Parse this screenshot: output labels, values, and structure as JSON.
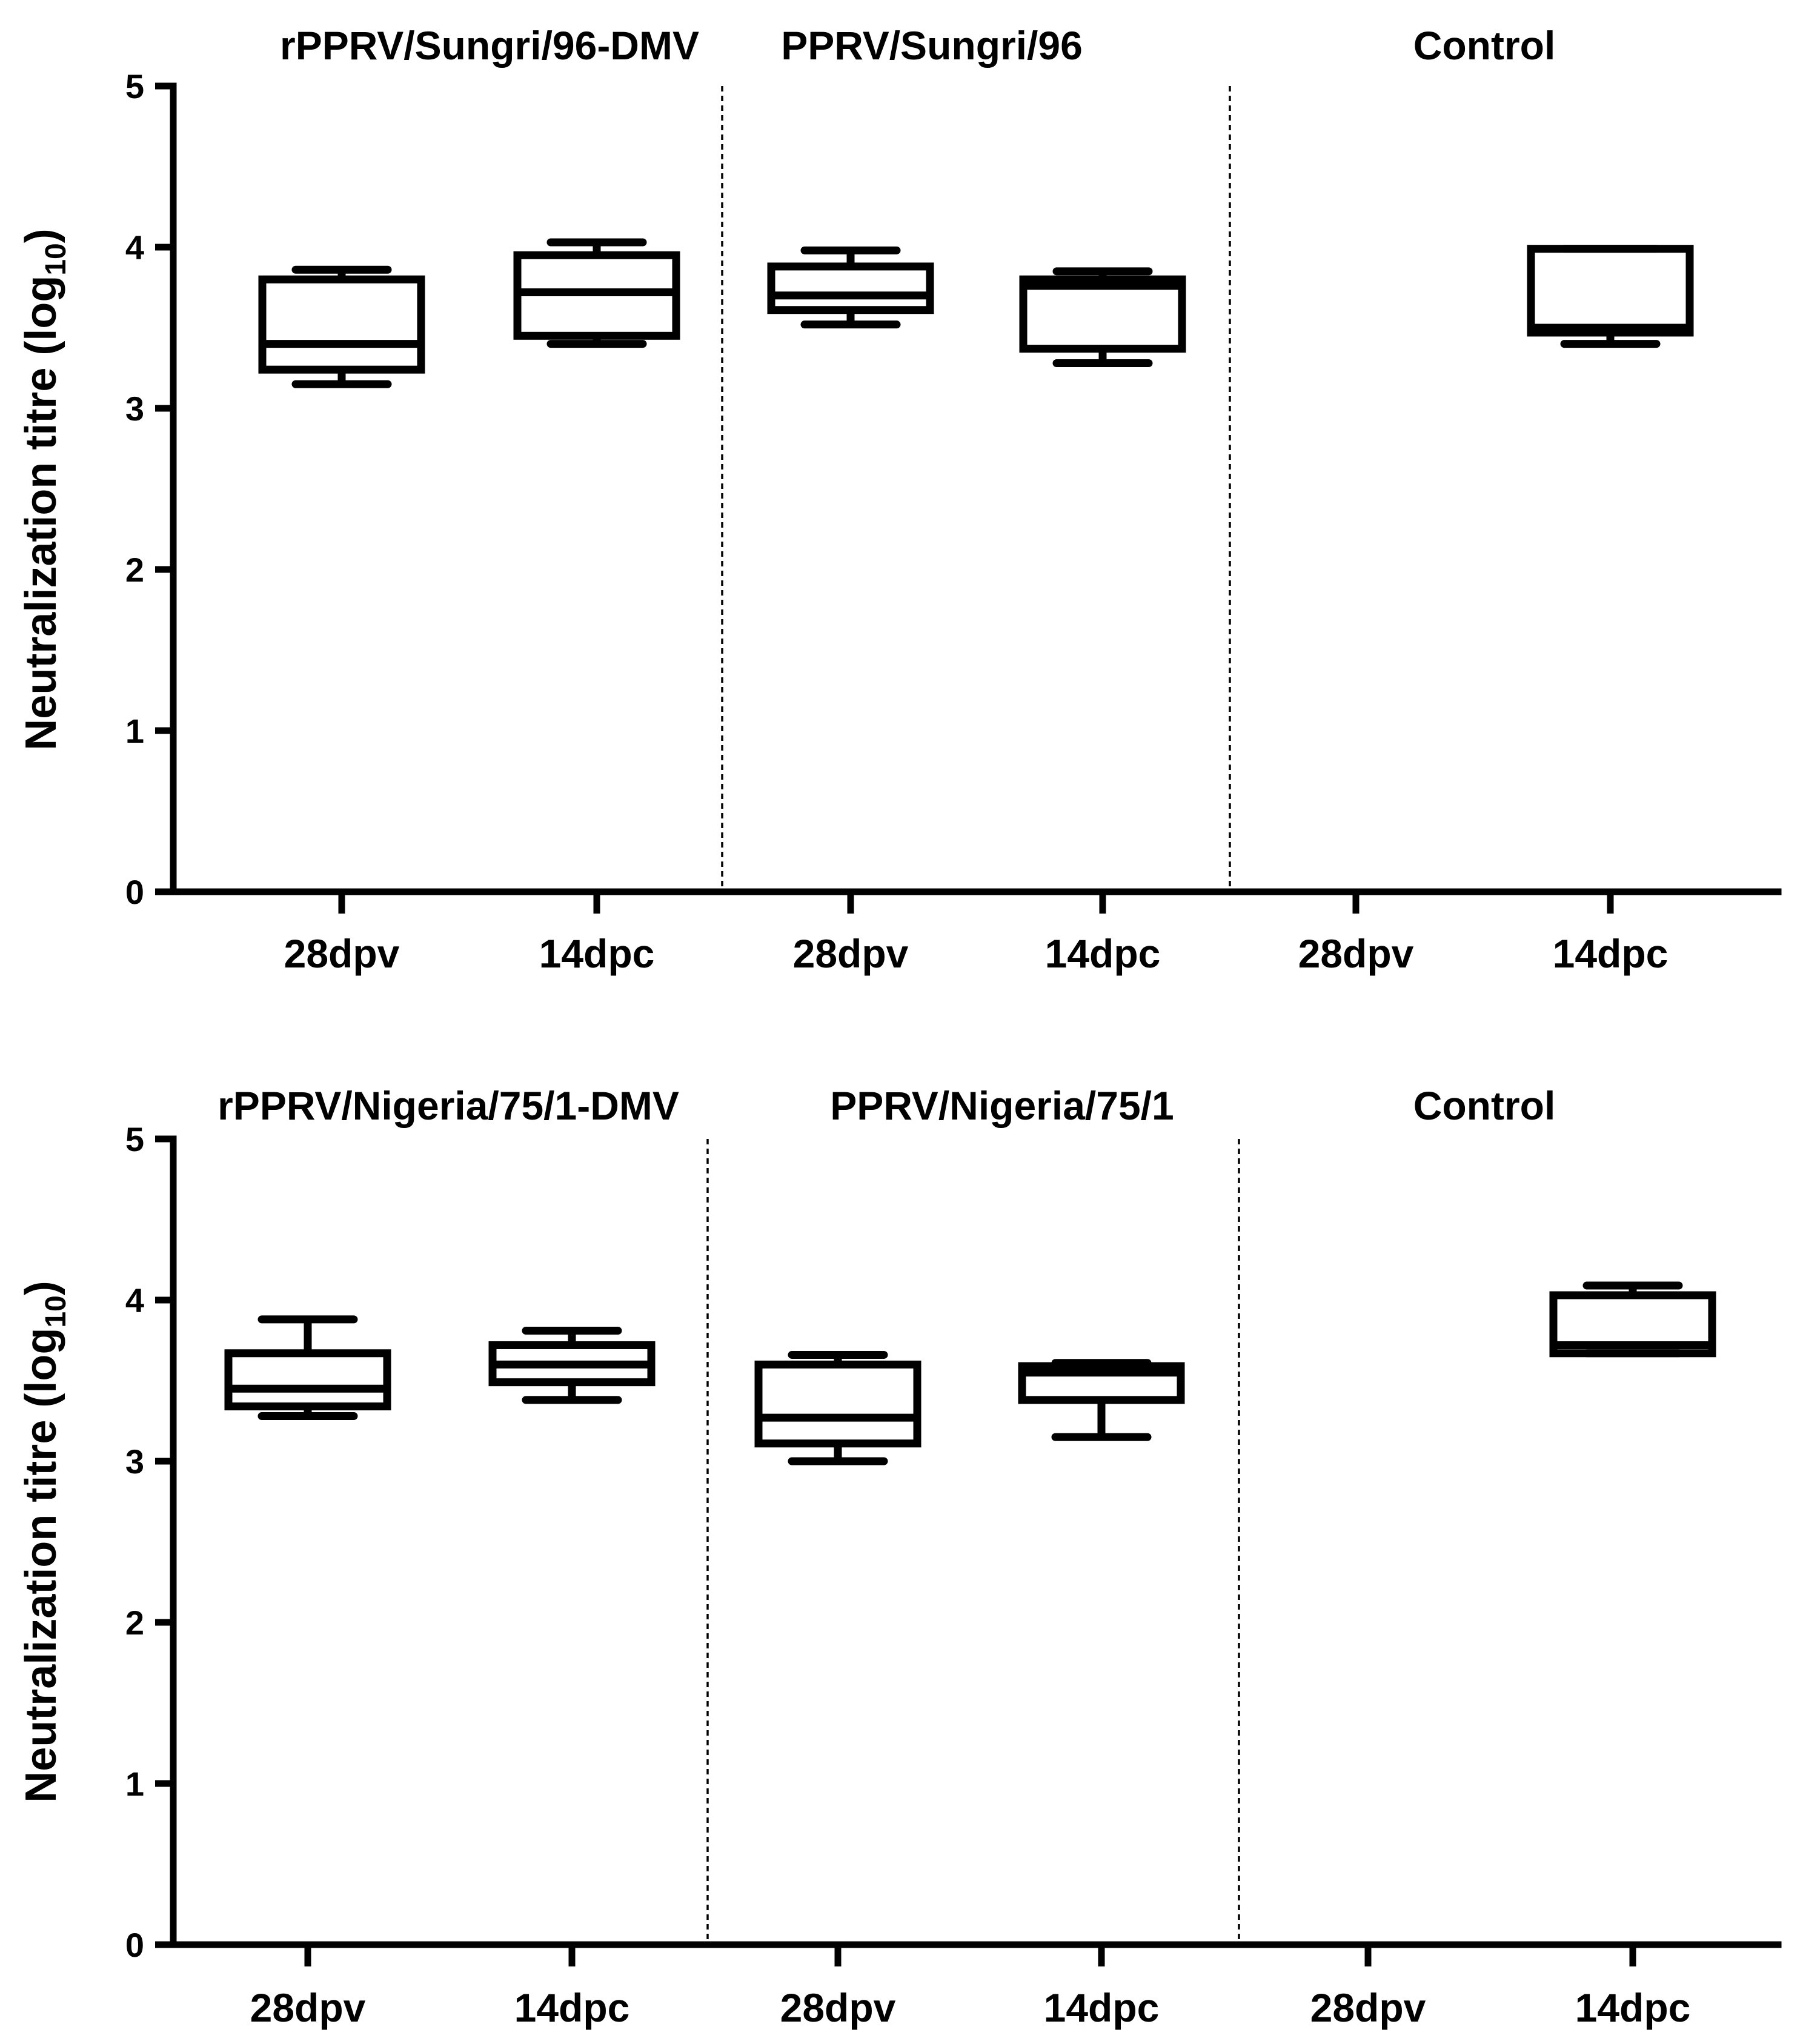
{
  "chart_data": [
    {
      "type": "box",
      "ylabel": "Neutralization titre (log10)",
      "ylabel_parts": {
        "main": "Neutralization titre (log",
        "sub": "10",
        "close": ")"
      },
      "ylim": [
        0,
        5
      ],
      "yticks": [
        "0",
        "1",
        "2",
        "3",
        "4",
        "5"
      ],
      "groups": [
        "rPPRV/Sungri/96-DMV",
        "PPRV/Sungri/96",
        "Control"
      ],
      "categories": [
        "28dpv",
        "14dpc",
        "28dpv",
        "14dpc",
        "28dpv",
        "14dpc"
      ],
      "boxes": [
        {
          "group": "rPPRV/Sungri/96-DMV",
          "category": "28dpv",
          "min": 3.15,
          "q1": 3.24,
          "median": 3.4,
          "q3": 3.8,
          "max": 3.86
        },
        {
          "group": "rPPRV/Sungri/96-DMV",
          "category": "14dpc",
          "min": 3.4,
          "q1": 3.45,
          "median": 3.72,
          "q3": 3.95,
          "max": 4.03
        },
        {
          "group": "PPRV/Sungri/96",
          "category": "28dpv",
          "min": 3.52,
          "q1": 3.61,
          "median": 3.7,
          "q3": 3.88,
          "max": 3.98
        },
        {
          "group": "PPRV/Sungri/96",
          "category": "14dpc",
          "min": 3.28,
          "q1": 3.37,
          "median": 3.76,
          "q3": 3.8,
          "max": 3.85
        },
        {
          "group": "Control",
          "category": "28dpv",
          "min": null,
          "q1": null,
          "median": null,
          "q3": null,
          "max": null
        },
        {
          "group": "Control",
          "category": "14dpc",
          "min": 3.4,
          "q1": 3.47,
          "median": 3.5,
          "q3": 3.99,
          "max": 3.99
        }
      ]
    },
    {
      "type": "box",
      "ylabel": "Neutralization titre (log10)",
      "ylabel_parts": {
        "main": "Neutralization titre (log",
        "sub": "10",
        "close": ")"
      },
      "ylim": [
        0,
        5
      ],
      "yticks": [
        "0",
        "1",
        "2",
        "3",
        "4",
        "5"
      ],
      "groups": [
        "rPPRV/Nigeria/75/1-DMV",
        "PPRV/Nigeria/75/1",
        "Control"
      ],
      "categories": [
        "28dpv",
        "14dpc",
        "28dpv",
        "14dpc",
        "28dpv",
        "14dpc"
      ],
      "boxes": [
        {
          "group": "rPPRV/Nigeria/75/1-DMV",
          "category": "28dpv",
          "min": 3.28,
          "q1": 3.34,
          "median": 3.45,
          "q3": 3.67,
          "max": 3.88
        },
        {
          "group": "rPPRV/Nigeria/75/1-DMV",
          "category": "14dpc",
          "min": 3.38,
          "q1": 3.49,
          "median": 3.6,
          "q3": 3.72,
          "max": 3.81
        },
        {
          "group": "PPRV/Nigeria/75/1",
          "category": "28dpv",
          "min": 3.0,
          "q1": 3.11,
          "median": 3.27,
          "q3": 3.6,
          "max": 3.66
        },
        {
          "group": "PPRV/Nigeria/75/1",
          "category": "14dpc",
          "min": 3.15,
          "q1": 3.38,
          "median": 3.55,
          "q3": 3.59,
          "max": 3.61
        },
        {
          "group": "Control",
          "category": "28dpv",
          "min": null,
          "q1": null,
          "median": null,
          "q3": null,
          "max": null
        },
        {
          "group": "Control",
          "category": "14dpc",
          "min": 3.67,
          "q1": 3.67,
          "median": 3.72,
          "q3": 4.03,
          "max": 4.09
        }
      ]
    }
  ]
}
